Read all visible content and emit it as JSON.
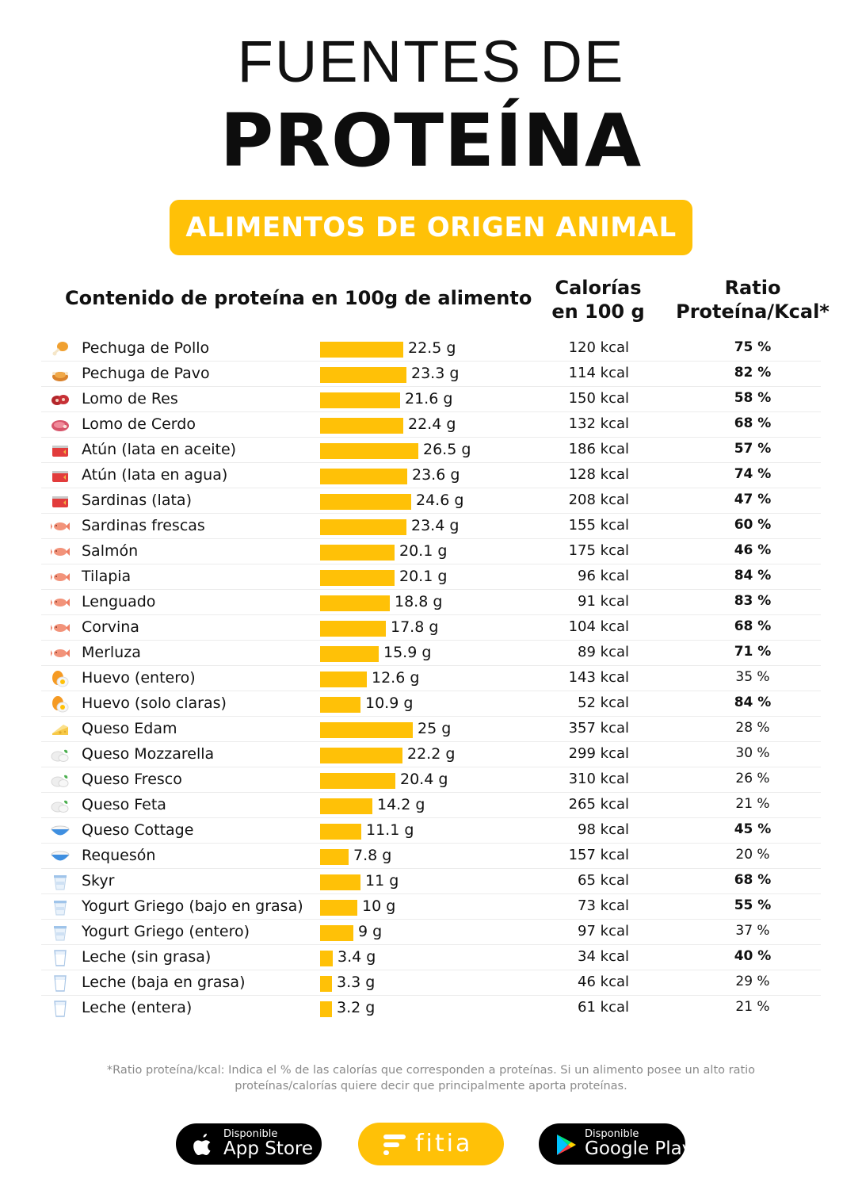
{
  "title_line1": "FUENTES DE",
  "title_line2": "PROTEÍNA",
  "banner": "ALIMENTOS DE ORIGEN ANIMAL",
  "headers": {
    "content": "Contenido de proteína en 100g de alimento",
    "calories_line1": "Calorías",
    "calories_line2": "en 100 g",
    "ratio_line1": "Ratio",
    "ratio_line2": "Proteína/Kcal*"
  },
  "chart_data": {
    "type": "bar",
    "orientation": "horizontal",
    "title": "Contenido de proteína en 100g de alimento",
    "unit": "g",
    "xlim": [
      0,
      26.5
    ],
    "categories": [
      "Pechuga de Pollo",
      "Pechuga de Pavo",
      "Lomo de Res",
      "Lomo de Cerdo",
      "Atún (lata en aceite)",
      "Atún (lata en agua)",
      "Sardinas (lata)",
      "Sardinas frescas",
      "Salmón",
      "Tilapia",
      "Lenguado",
      "Corvina",
      "Merluza",
      "Huevo (entero)",
      "Huevo (solo claras)",
      "Queso Edam",
      "Queso Mozzarella",
      "Queso Fresco",
      "Queso Feta",
      "Queso Cottage",
      "Requesón",
      "Skyr",
      "Yogurt Griego (bajo en grasa)",
      "Yogurt Griego (entero)",
      "Leche (sin grasa)",
      "Leche (baja en grasa)",
      "Leche (entera)"
    ],
    "values": [
      22.5,
      23.3,
      21.6,
      22.4,
      26.5,
      23.6,
      24.6,
      23.4,
      20.1,
      20.1,
      18.8,
      17.8,
      15.9,
      12.6,
      10.9,
      25,
      22.2,
      20.4,
      14.2,
      11.1,
      7.8,
      11,
      10,
      9,
      3.4,
      3.3,
      3.2
    ],
    "value_labels": [
      "22.5 g",
      "23.3 g",
      "21.6 g",
      "22.4 g",
      "26.5 g",
      "23.6 g",
      "24.6 g",
      "23.4 g",
      "20.1 g",
      "20.1 g",
      "18.8 g",
      "17.8 g",
      "15.9 g",
      "12.6 g",
      "10.9 g",
      "25 g",
      "22.2 g",
      "20.4 g",
      "14.2 g",
      "11.1 g",
      "7.8 g",
      "11 g",
      "10 g",
      "9 g",
      "3.4 g",
      "3.3 g",
      "3.2 g"
    ],
    "calories": [
      "120 kcal",
      "114 kcal",
      "150 kcal",
      "132 kcal",
      "186 kcal",
      "128 kcal",
      "208 kcal",
      "155 kcal",
      "175 kcal",
      "96 kcal",
      "91 kcal",
      "104 kcal",
      "89 kcal",
      "143 kcal",
      "52 kcal",
      "357 kcal",
      "299 kcal",
      "310 kcal",
      "265 kcal",
      "98 kcal",
      "157 kcal",
      "65 kcal",
      "73 kcal",
      "97 kcal",
      "34 kcal",
      "46 kcal",
      "61 kcal"
    ],
    "ratios": [
      "75 %",
      "82 %",
      "58 %",
      "68 %",
      "57 %",
      "74 %",
      "47 %",
      "60 %",
      "46 %",
      "84 %",
      "83 %",
      "68 %",
      "71 %",
      "35 %",
      "84 %",
      "28 %",
      "30 %",
      "26 %",
      "21 %",
      "45 %",
      "20 %",
      "68 %",
      "55 %",
      "37 %",
      "40 %",
      "29 %",
      "21 %"
    ],
    "ratio_bold": [
      true,
      true,
      true,
      true,
      true,
      true,
      true,
      true,
      true,
      true,
      true,
      true,
      true,
      false,
      true,
      false,
      false,
      false,
      false,
      true,
      false,
      true,
      true,
      false,
      true,
      false,
      false
    ],
    "icons": [
      "chicken-leg-icon",
      "roast-turkey-icon",
      "beef-icon",
      "pork-icon",
      "tin-can-icon",
      "tin-can-icon",
      "tin-can-icon",
      "fish-icon",
      "fish-icon",
      "fish-icon",
      "fish-icon",
      "fish-icon",
      "fish-icon",
      "egg-icon",
      "egg-icon",
      "cheese-icon",
      "mozzarella-icon",
      "mozzarella-icon",
      "mozzarella-icon",
      "bowl-icon",
      "bowl-icon",
      "yogurt-icon",
      "yogurt-icon",
      "yogurt-icon",
      "milk-glass-icon",
      "milk-glass-icon",
      "milk-glass-icon"
    ],
    "bar_color": "#ffc107"
  },
  "footnote": "*Ratio proteína/kcal: Indica el % de las calorías que corresponden a proteínas. Si un alimento posee un alto ratio proteínas/calorías quiere decir que principalmente aporta proteínas.",
  "badges": {
    "appstore_small": "Disponible",
    "appstore_big": "App Store",
    "fitia": "fitia",
    "google_small": "Disponible",
    "google_big": "Google Play"
  },
  "colors": {
    "accent": "#ffc107",
    "text": "#111111",
    "footnote": "#8a8a8a"
  }
}
